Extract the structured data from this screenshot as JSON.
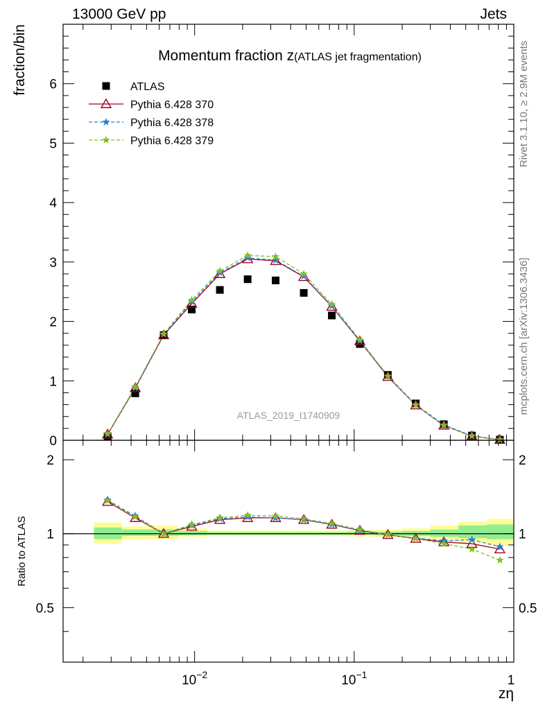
{
  "header": {
    "left": "13000 GeV pp",
    "right": "Jets"
  },
  "side_labels": {
    "rivet": "Rivet 3.1.10, ≥ 2.9M events",
    "mcplots": "mcplots.cern.ch [arXiv:1306.3436]"
  },
  "chart_data": {
    "type": "scatter",
    "title_main": "Momentum fraction z",
    "title_sub": "(ATLAS jet fragmentation)",
    "xlabel": "zη",
    "ylabel": "fraction/bin",
    "ratio_ylabel": "Ratio to ATLAS",
    "watermark": "ATLAS_2019_I1740909",
    "xscale": "log",
    "xlim": [
      0.0015,
      1.0
    ],
    "ylim": [
      0,
      7
    ],
    "ratio_ylim": [
      0.3,
      2.4
    ],
    "x_tick_labels": [
      {
        "base": "10",
        "exp": "−2",
        "value": 0.01
      },
      {
        "base": "10",
        "exp": "−1",
        "value": 0.1
      },
      {
        "base": "1",
        "exp": "",
        "value": 1.0
      }
    ],
    "y_ticks": [
      "0",
      "1",
      "2",
      "3",
      "4",
      "5",
      "6"
    ],
    "ratio_ticks": [
      "0.5",
      "1",
      "2"
    ],
    "x": [
      0.00285,
      0.00425,
      0.0064,
      0.0096,
      0.0144,
      0.0215,
      0.0322,
      0.0483,
      0.0724,
      0.1085,
      0.1625,
      0.243,
      0.3645,
      0.5465,
      0.818
    ],
    "series": [
      {
        "name": "ATLAS",
        "color": "#000000",
        "marker": "square",
        "values": [
          0.07,
          0.79,
          1.77,
          2.2,
          2.53,
          2.71,
          2.69,
          2.48,
          2.1,
          1.62,
          1.1,
          0.62,
          0.27,
          0.08,
          0.01
        ],
        "ratio": [
          1.0,
          1.0,
          1.0,
          1.0,
          1.0,
          1.0,
          1.0,
          1.0,
          1.0,
          1.0,
          1.0,
          1.0,
          1.0,
          1.0,
          1.0
        ]
      },
      {
        "name": "Pythia 6.428 370",
        "color": "#a00020",
        "marker": "triangle",
        "line": "solid",
        "values": [
          0.1,
          0.88,
          1.77,
          2.3,
          2.8,
          3.05,
          3.02,
          2.75,
          2.25,
          1.67,
          1.07,
          0.59,
          0.25,
          0.07,
          0.009
        ],
        "ratio": [
          1.35,
          1.16,
          1.0,
          1.07,
          1.14,
          1.16,
          1.16,
          1.14,
          1.09,
          1.03,
          0.99,
          0.955,
          0.925,
          0.91,
          0.865
        ]
      },
      {
        "name": "Pythia 6.428 378",
        "color": "#2080e0",
        "marker": "star",
        "line": "dashed",
        "values": [
          0.1,
          0.88,
          1.78,
          2.33,
          2.82,
          3.07,
          3.03,
          2.76,
          2.26,
          1.67,
          1.08,
          0.6,
          0.26,
          0.075,
          0.009
        ],
        "ratio": [
          1.37,
          1.18,
          1.0,
          1.08,
          1.15,
          1.17,
          1.16,
          1.14,
          1.09,
          1.03,
          0.99,
          0.96,
          0.935,
          0.945,
          0.885
        ]
      },
      {
        "name": "Pythia 6.428 379",
        "color": "#80c020",
        "marker": "star",
        "line": "dashed",
        "values": [
          0.11,
          0.9,
          1.79,
          2.36,
          2.85,
          3.11,
          3.09,
          2.8,
          2.29,
          1.69,
          1.08,
          0.59,
          0.25,
          0.07,
          0.008
        ],
        "ratio": [
          1.36,
          1.17,
          1.0,
          1.09,
          1.16,
          1.19,
          1.18,
          1.15,
          1.1,
          1.04,
          0.99,
          0.955,
          0.91,
          0.865,
          0.78
        ]
      }
    ],
    "band_bins": [
      {
        "lo": 0.00234,
        "hi": 0.0035,
        "yel": [
          0.91,
          1.11
        ],
        "grn": [
          0.95,
          1.06
        ]
      },
      {
        "lo": 0.0035,
        "hi": 0.0053,
        "yel": [
          0.95,
          1.07
        ],
        "grn": [
          0.98,
          1.04
        ]
      },
      {
        "lo": 0.0053,
        "hi": 0.0079,
        "yel": [
          0.95,
          1.08
        ],
        "grn": [
          0.98,
          1.04
        ]
      },
      {
        "lo": 0.0079,
        "hi": 0.012,
        "yel": [
          0.97,
          1.05
        ],
        "grn": [
          0.985,
          1.025
        ]
      },
      {
        "lo": 0.012,
        "hi": 0.018,
        "yel": [
          0.98,
          1.03
        ],
        "grn": [
          0.99,
          1.015
        ]
      },
      {
        "lo": 0.018,
        "hi": 0.027,
        "yel": [
          0.98,
          1.03
        ],
        "grn": [
          0.99,
          1.015
        ]
      },
      {
        "lo": 0.027,
        "hi": 0.04,
        "yel": [
          0.98,
          1.03
        ],
        "grn": [
          0.99,
          1.015
        ]
      },
      {
        "lo": 0.04,
        "hi": 0.06,
        "yel": [
          0.98,
          1.03
        ],
        "grn": [
          0.99,
          1.015
        ]
      },
      {
        "lo": 0.06,
        "hi": 0.09,
        "yel": [
          0.98,
          1.03
        ],
        "grn": [
          0.99,
          1.015
        ]
      },
      {
        "lo": 0.09,
        "hi": 0.135,
        "yel": [
          0.975,
          1.035
        ],
        "grn": [
          0.99,
          1.02
        ]
      },
      {
        "lo": 0.135,
        "hi": 0.2,
        "yel": [
          0.97,
          1.04
        ],
        "grn": [
          0.985,
          1.02
        ]
      },
      {
        "lo": 0.2,
        "hi": 0.3,
        "yel": [
          0.96,
          1.05
        ],
        "grn": [
          0.98,
          1.025
        ]
      },
      {
        "lo": 0.3,
        "hi": 0.45,
        "yel": [
          0.94,
          1.08
        ],
        "grn": [
          0.97,
          1.04
        ]
      },
      {
        "lo": 0.45,
        "hi": 0.68,
        "yel": [
          0.92,
          1.12
        ],
        "grn": [
          0.96,
          1.08
        ]
      },
      {
        "lo": 0.68,
        "hi": 1.0,
        "yel": [
          0.9,
          1.15
        ],
        "grn": [
          0.95,
          1.09
        ]
      }
    ],
    "band_colors": {
      "yellow": "#fdfd96",
      "green": "#90ee90"
    },
    "legend_position": "top-left"
  }
}
